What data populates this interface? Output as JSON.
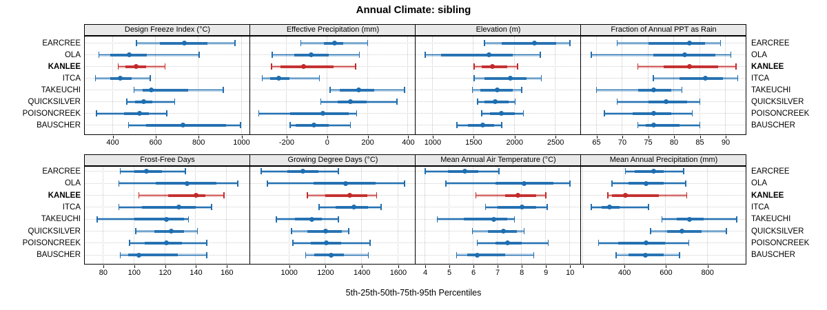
{
  "title": "Annual Climate: sibling",
  "caption": "5th-25th-50th-75th-95th Percentiles",
  "colors": {
    "series": "#1f6eb0",
    "highlight": "#c22a29",
    "strip_bg": "#e9e9e9",
    "grid": "#c6c6c6",
    "panel_border": "#000000"
  },
  "chart_data": {
    "type": "scatter",
    "subtype": "quantile-interval-dotplot",
    "title": "Annual Climate: sibling",
    "caption": "5th-25th-50th-75th-95th Percentiles",
    "percentiles": [
      5,
      25,
      50,
      75,
      95
    ],
    "grid": true,
    "legend_position": "none",
    "sites": [
      "EARCREE",
      "OLA",
      "KANLEE",
      "ITCA",
      "TAKEUCHI",
      "QUICKSILVER",
      "POISONCREEK",
      "BAUSCHER"
    ],
    "highlight_site": "KANLEE",
    "panels": [
      {
        "label": "Design Freeze Index (°C)",
        "xlim": [
          270,
          1040
        ],
        "ticks": [
          400,
          600,
          800,
          1000
        ],
        "tick_labels": [
          "400",
          "600",
          "800",
          "1000"
        ],
        "values": {
          "EARCREE": [
            510,
            620,
            733,
            840,
            970
          ],
          "OLA": [
            335,
            390,
            478,
            560,
            803
          ],
          "KANLEE": [
            425,
            460,
            510,
            557,
            643
          ],
          "ITCA": [
            320,
            390,
            435,
            487,
            575
          ],
          "TAKEUCHI": [
            500,
            540,
            578,
            750,
            915
          ],
          "QUICKSILVER": [
            465,
            505,
            543,
            585,
            688
          ],
          "POISONCREEK": [
            325,
            452,
            525,
            570,
            652
          ],
          "BAUSCHER": [
            474,
            555,
            727,
            927,
            995
          ]
        }
      },
      {
        "label": "Effective Precipitation (mm)",
        "xlim": [
          -380,
          436
        ],
        "ticks": [
          -200,
          0,
          200,
          400
        ],
        "tick_labels": [
          "-200",
          "0",
          "200",
          "400"
        ],
        "values": {
          "EARCREE": [
            -130,
            -15,
            37,
            80,
            200
          ],
          "OLA": [
            -272,
            -164,
            -79,
            9,
            159
          ],
          "KANLEE": [
            -275,
            -230,
            -118,
            30,
            140
          ],
          "ITCA": [
            -320,
            -280,
            -238,
            -187,
            -38
          ],
          "TAKEUCHI": [
            14,
            62,
            156,
            233,
            382
          ],
          "QUICKSILVER": [
            -32,
            51,
            114,
            195,
            344
          ],
          "POISONCREEK": [
            -337,
            -184,
            -23,
            105,
            145
          ],
          "BAUSCHER": [
            -182,
            -155,
            -66,
            6,
            114
          ]
        }
      },
      {
        "label": "Elevation (m)",
        "xlim": [
          790,
          2810
        ],
        "ticks": [
          1000,
          1500,
          2000,
          2500
        ],
        "tick_labels": [
          "1000",
          "1500",
          "2000",
          "2500"
        ],
        "values": {
          "EARCREE": [
            1630,
            1840,
            2238,
            2510,
            2675
          ],
          "OLA": [
            908,
            1098,
            1690,
            1980,
            2315
          ],
          "KANLEE": [
            1505,
            1597,
            1728,
            1910,
            2036
          ],
          "ITCA": [
            1505,
            1630,
            1950,
            2148,
            2325
          ],
          "TAKEUCHI": [
            1485,
            1583,
            1790,
            1980,
            2085
          ],
          "QUICKSILVER": [
            1546,
            1630,
            1765,
            1924,
            2008
          ],
          "POISONCREEK": [
            1597,
            1700,
            1835,
            2003,
            2106
          ],
          "BAUSCHER": [
            1294,
            1426,
            1611,
            1751,
            1840
          ]
        }
      },
      {
        "label": "Fraction of Annual PPT as Rain",
        "xlim": [
          62,
          94
        ],
        "ticks": [
          65,
          70,
          75,
          80,
          85,
          90
        ],
        "tick_labels": [
          "65",
          "70",
          "75",
          "80",
          "85",
          "90"
        ],
        "values": {
          "EARCREE": [
            69,
            75,
            83,
            86,
            89
          ],
          "OLA": [
            64,
            76,
            82,
            88,
            91
          ],
          "KANLEE": [
            73,
            78,
            83,
            88.5,
            92
          ],
          "ITCA": [
            76,
            81,
            86,
            89.5,
            92.3
          ],
          "TAKEUCHI": [
            65,
            73,
            76,
            79.5,
            81.5
          ],
          "QUICKSILVER": [
            69,
            75,
            78.5,
            82.5,
            85
          ],
          "POISONCREEK": [
            66.5,
            72,
            76,
            79.5,
            83.5
          ],
          "BAUSCHER": [
            73,
            74.5,
            76,
            81,
            85
          ]
        }
      },
      {
        "label": "Frost-Free Days",
        "xlim": [
          68,
          175
        ],
        "ticks": [
          80,
          100,
          120,
          140,
          160
        ],
        "tick_labels": [
          "80",
          "100",
          "120",
          "140",
          "160"
        ],
        "values": {
          "EARCREE": [
            91,
            100,
            108,
            118,
            133
          ],
          "OLA": [
            90,
            114,
            134,
            153,
            167
          ],
          "KANLEE": [
            103,
            122,
            140,
            146,
            158
          ],
          "ITCA": [
            90,
            105,
            129,
            140,
            150
          ],
          "TAKEUCHI": [
            76,
            100,
            121,
            132,
            135
          ],
          "QUICKSILVER": [
            101,
            113,
            124,
            132,
            141
          ],
          "POISONCREEK": [
            97,
            107,
            121,
            131,
            147
          ],
          "BAUSCHER": [
            91,
            96,
            103,
            128,
            147
          ]
        }
      },
      {
        "label": "Growing Degree Days (°C)",
        "xlim": [
          785,
          1695
        ],
        "ticks": [
          1000,
          1200,
          1400,
          1600
        ],
        "tick_labels": [
          "1000",
          "1200",
          "1400",
          "1600"
        ],
        "values": {
          "EARCREE": [
            845,
            990,
            1075,
            1160,
            1270
          ],
          "OLA": [
            880,
            1135,
            1312,
            1475,
            1635
          ],
          "KANLEE": [
            1100,
            1200,
            1333,
            1430,
            1480
          ],
          "ITCA": [
            1165,
            1255,
            1355,
            1435,
            1505
          ],
          "TAKEUCHI": [
            930,
            1030,
            1125,
            1180,
            1270
          ],
          "QUICKSILVER": [
            1012,
            1100,
            1202,
            1290,
            1328
          ],
          "POISONCREEK": [
            1020,
            1120,
            1205,
            1285,
            1445
          ],
          "BAUSCHER": [
            1090,
            1136,
            1230,
            1300,
            1435
          ]
        }
      },
      {
        "label": "Mean Annual Air Temperature (°C)",
        "xlim": [
          3.6,
          10.45
        ],
        "ticks": [
          4,
          5,
          6,
          7,
          8,
          9,
          10
        ],
        "tick_labels": [
          "4",
          "5",
          "6",
          "7",
          "8",
          "9",
          "10"
        ],
        "values": {
          "EARCREE": [
            4.0,
            4.95,
            5.65,
            6.2,
            7.05
          ],
          "OLA": [
            4.85,
            6.9,
            8.1,
            9.3,
            10.0
          ],
          "KANLEE": [
            6.1,
            7.3,
            7.85,
            8.6,
            9.0
          ],
          "ITCA": [
            6.5,
            7.0,
            8.0,
            8.6,
            9.05
          ],
          "TAKEUCHI": [
            4.5,
            5.6,
            6.85,
            7.4,
            7.7
          ],
          "QUICKSILVER": [
            5.95,
            6.6,
            7.25,
            7.8,
            8.1
          ],
          "POISONCREEK": [
            6.15,
            6.9,
            7.4,
            8.0,
            9.1
          ],
          "BAUSCHER": [
            5.3,
            5.75,
            6.15,
            7.3,
            8.5
          ]
        }
      },
      {
        "label": "Mean Annual Precipitation (mm)",
        "xlim": [
          190,
          987
        ],
        "ticks": [
          200,
          400,
          600,
          800
        ],
        "tick_labels": [
          "",
          "400",
          "600",
          "800"
        ],
        "values": {
          "EARCREE": [
            405,
            450,
            540,
            590,
            685
          ],
          "OLA": [
            340,
            420,
            505,
            590,
            695
          ],
          "KANLEE": [
            320,
            340,
            405,
            565,
            700
          ],
          "ITCA": [
            240,
            290,
            327,
            377,
            515
          ],
          "TAKEUCHI": [
            580,
            650,
            712,
            780,
            940
          ],
          "QUICKSILVER": [
            525,
            605,
            675,
            770,
            890
          ],
          "POISONCREEK": [
            275,
            370,
            505,
            595,
            710
          ],
          "BAUSCHER": [
            360,
            420,
            500,
            590,
            665
          ]
        }
      }
    ]
  }
}
